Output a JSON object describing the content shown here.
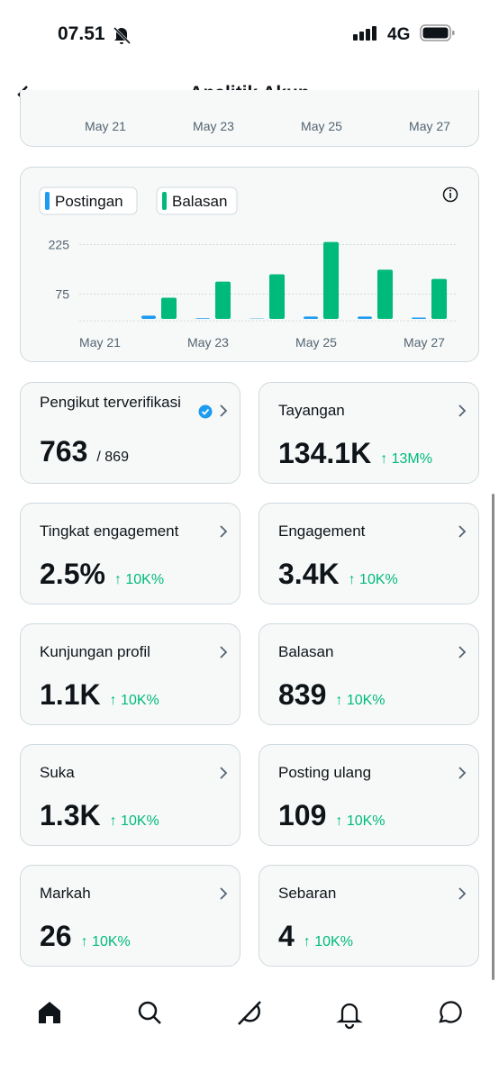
{
  "status_bar": {
    "time": "07.51",
    "network": "4G"
  },
  "header": {
    "title": "Analitik Akun"
  },
  "previous_chart_axis": [
    "May 21",
    "May 23",
    "May 25",
    "May 27"
  ],
  "chart_data": {
    "type": "bar",
    "categories": [
      "May 21",
      null,
      "May 23",
      null,
      "May 25",
      null,
      "May 27"
    ],
    "series": [
      {
        "name": "Postingan",
        "color": "#1d9bf0",
        "values": [
          0,
          10,
          2,
          1,
          7,
          7,
          4
        ]
      },
      {
        "name": "Balasan",
        "color": "#00ba7c",
        "values": [
          0,
          64,
          113,
          135,
          233,
          149,
          121
        ]
      }
    ],
    "ylim": [
      0,
      240
    ],
    "yticks": [
      75,
      225
    ],
    "grid": true
  },
  "stats": [
    {
      "label": "Pengikut terverifikasi",
      "value": "763",
      "total": "/ 869"
    },
    {
      "label": "Tayangan",
      "value": "134.1K",
      "change": "↑ 13M%"
    },
    {
      "label": "Tingkat engagement",
      "value": "2.5%",
      "change": "↑ 10K%"
    },
    {
      "label": "Engagement",
      "value": "3.4K",
      "change": "↑ 10K%"
    },
    {
      "label": "Kunjungan profil",
      "value": "1.1K",
      "change": "↑ 10K%"
    },
    {
      "label": "Balasan",
      "value": "839",
      "change": "↑ 10K%"
    },
    {
      "label": "Suka",
      "value": "1.3K",
      "change": "↑ 10K%"
    },
    {
      "label": "Posting ulang",
      "value": "109",
      "change": "↑ 10K%"
    },
    {
      "label": "Markah",
      "value": "26",
      "change": "↑ 10K%"
    },
    {
      "label": "Sebaran",
      "value": "4",
      "change": "↑ 10K%"
    }
  ]
}
